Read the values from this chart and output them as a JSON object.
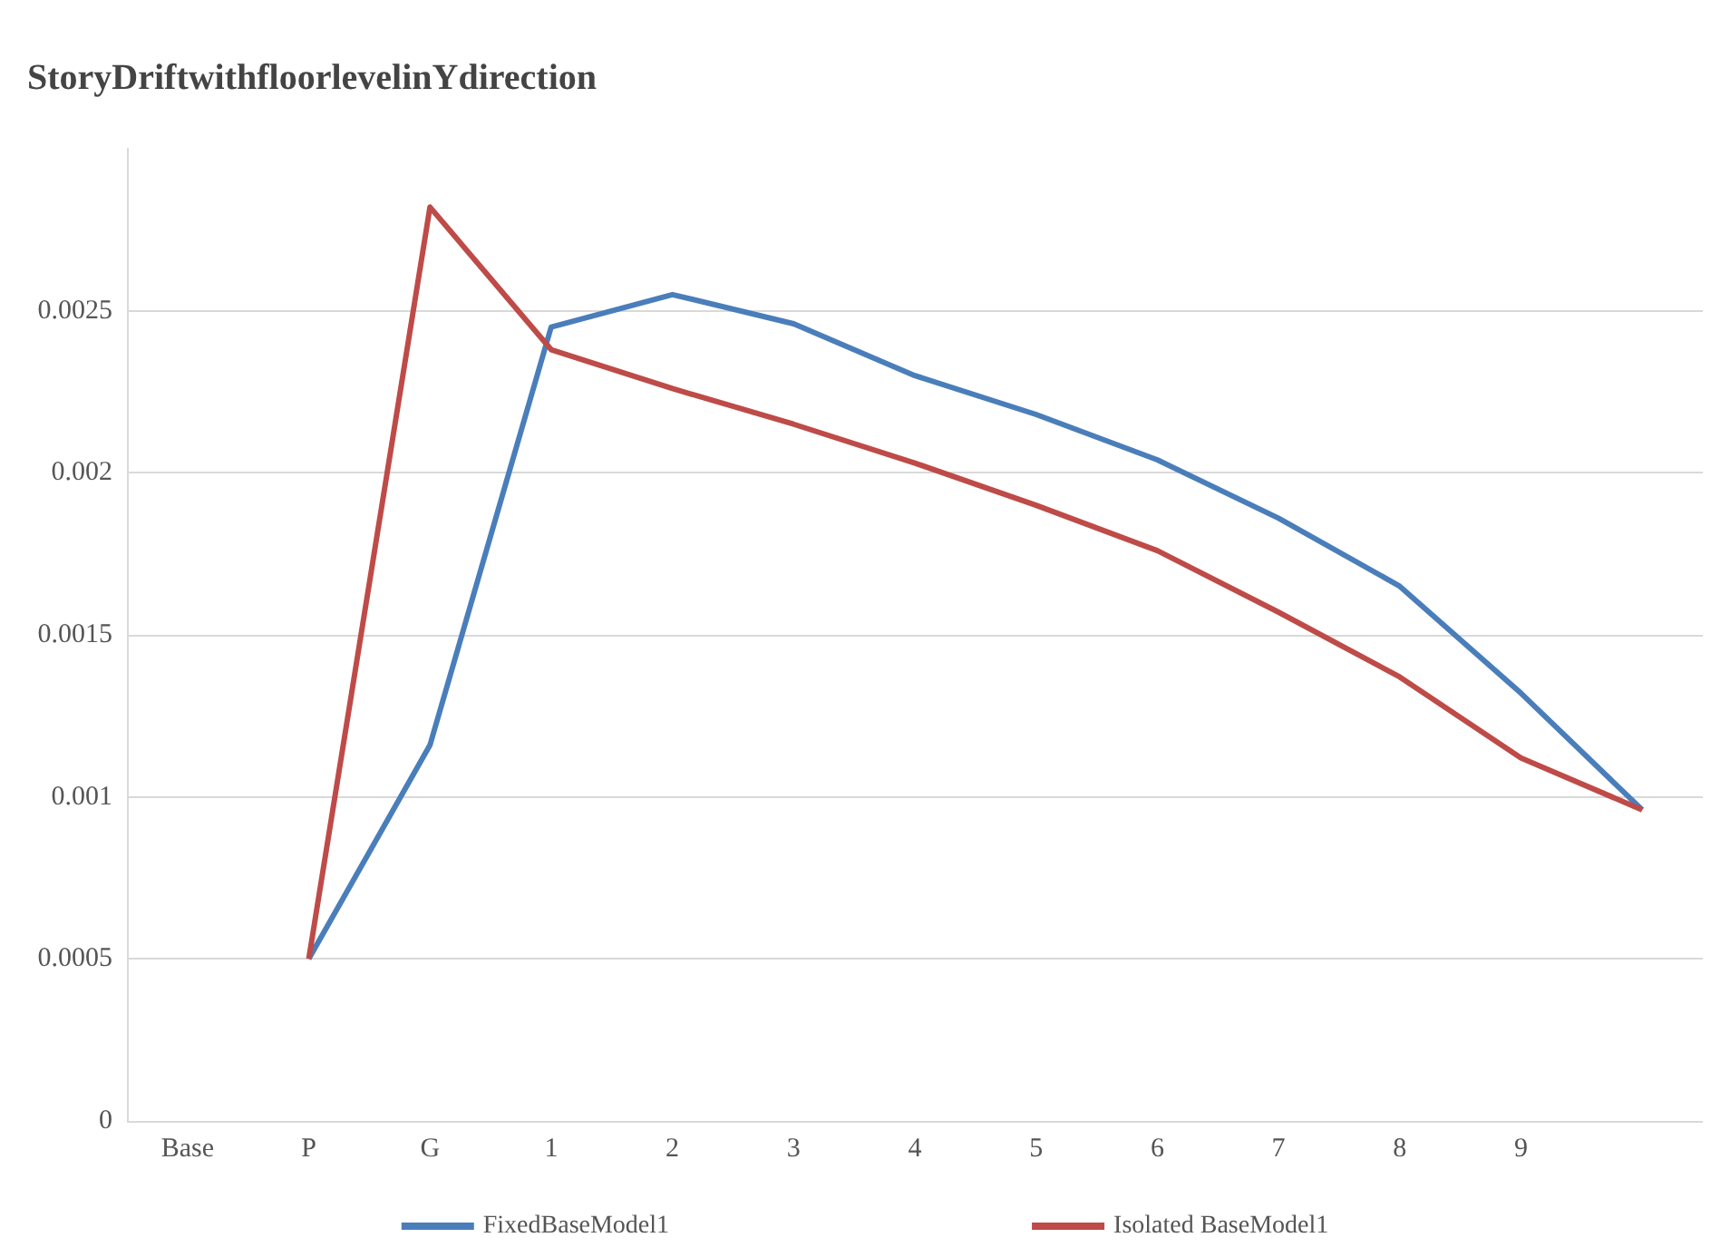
{
  "chart_data": {
    "type": "line",
    "title": "StoryDriftwithfloorlevelinYdirection",
    "categories": [
      "Base",
      "P",
      "G",
      "1",
      "2",
      "3",
      "4",
      "5",
      "6",
      "7",
      "8",
      "9",
      null
    ],
    "series": [
      {
        "name": "FixedBaseModel1",
        "color": "#4a7ebb",
        "values": [
          null,
          0.0005,
          0.00116,
          0.00245,
          0.00255,
          0.00246,
          0.0023,
          0.00218,
          0.00204,
          0.00186,
          0.00165,
          0.00132,
          0.00096
        ]
      },
      {
        "name": "Isolated BaseModel1",
        "color": "#be4b48",
        "values": [
          null,
          0.0005,
          0.00282,
          0.00238,
          0.00226,
          0.00215,
          0.00203,
          0.0019,
          0.00176,
          0.00157,
          0.00137,
          0.00112,
          0.00096
        ]
      }
    ],
    "ylim": [
      0,
      0.003
    ],
    "yticks": [
      0,
      0.0005,
      0.001,
      0.0015,
      0.002,
      0.0025
    ],
    "grid": "y",
    "legend": "bottom",
    "marker": "none",
    "line_style": "solid"
  }
}
